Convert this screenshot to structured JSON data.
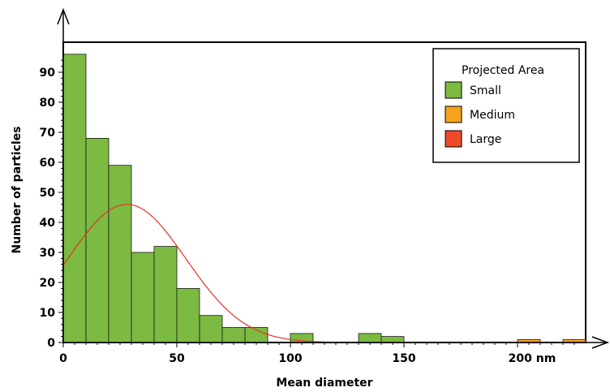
{
  "chart_data": {
    "type": "bar",
    "xlabel": "Mean diameter",
    "ylabel": "Number of particles",
    "xlim": [
      0,
      230
    ],
    "ylim": [
      0,
      100
    ],
    "x_ticks": [
      0,
      50,
      100,
      150,
      200
    ],
    "x_tick_labels": [
      "0",
      "50",
      "100",
      "150",
      "200 nm"
    ],
    "y_ticks": [
      0,
      10,
      20,
      30,
      40,
      50,
      60,
      70,
      80,
      90
    ],
    "y_tick_labels": [
      "0",
      "10",
      "20",
      "30",
      "40",
      "50",
      "60",
      "70",
      "80",
      "90"
    ],
    "bin_width": 10,
    "legend": {
      "title": "Projected Area",
      "position": "top-right",
      "entries": [
        {
          "label": "Small",
          "color": "#7cba42"
        },
        {
          "label": "Medium",
          "color": "#f7a21b"
        },
        {
          "label": "Large",
          "color": "#ee4a2a"
        }
      ]
    },
    "series": [
      {
        "name": "Small",
        "color": "#7cba42",
        "bins": [
          {
            "x": 0,
            "value": 96
          },
          {
            "x": 10,
            "value": 68
          },
          {
            "x": 20,
            "value": 59
          },
          {
            "x": 30,
            "value": 30
          },
          {
            "x": 40,
            "value": 32
          },
          {
            "x": 50,
            "value": 18
          },
          {
            "x": 60,
            "value": 9
          },
          {
            "x": 70,
            "value": 5
          },
          {
            "x": 80,
            "value": 5
          },
          {
            "x": 100,
            "value": 3
          },
          {
            "x": 130,
            "value": 3
          },
          {
            "x": 140,
            "value": 2
          }
        ]
      },
      {
        "name": "Medium",
        "color": "#f7a21b",
        "bins": [
          {
            "x": 200,
            "value": 1
          },
          {
            "x": 220,
            "value": 1
          }
        ]
      }
    ],
    "fit_curve": {
      "color": "#e8302a",
      "shape": "gaussian",
      "peak_x": 28,
      "peak_y": 46,
      "sigma": 26
    }
  }
}
